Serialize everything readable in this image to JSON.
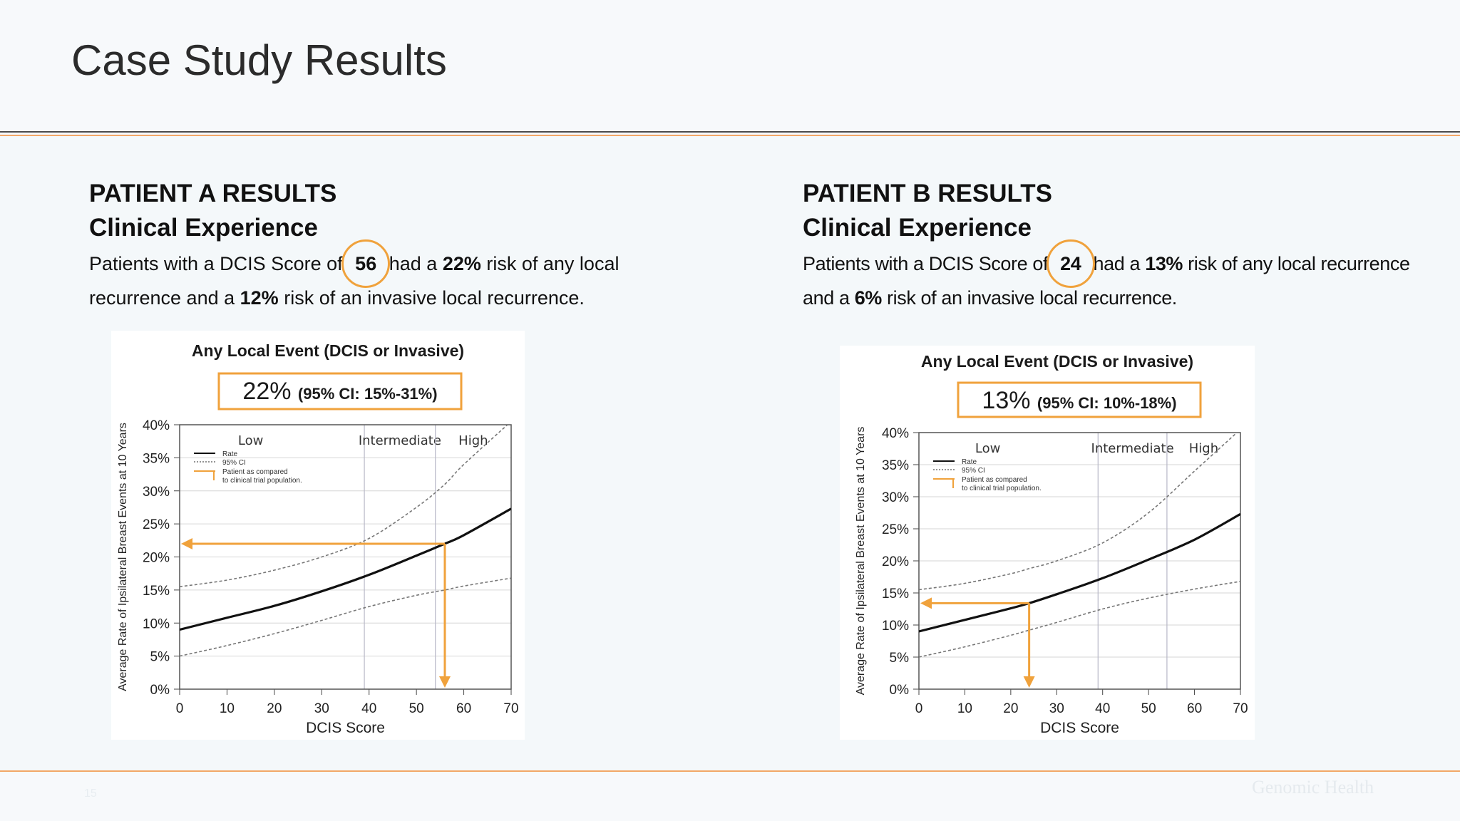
{
  "slide": {
    "title": "Case Study Results",
    "footer_page": "15",
    "footer_logo": "Genomic Health"
  },
  "panels": [
    {
      "heading": "PATIENT A RESULTS",
      "subheading": "Clinical Experience",
      "text_before": "Patients with a DCIS Score of",
      "score": "56",
      "text_mid1": "had a",
      "any_risk": "22%",
      "text_mid2": "risk of any local recurrence and a",
      "invasive_risk": "12%",
      "text_end": "risk of an invasive local recurrence."
    },
    {
      "heading": "PATIENT B RESULTS",
      "subheading": "Clinical Experience",
      "text_before": "Patients with a DCIS Score of",
      "score": "24",
      "text_mid1": "had a",
      "any_risk": "13%",
      "text_mid2": "risk of any local recurrence and a",
      "invasive_risk": "6%",
      "text_end": "risk of an invasive local recurrence."
    }
  ],
  "colors": {
    "accent": "#f0a23c",
    "rate_line": "#111111",
    "ci_line": "#777777",
    "grid": "#d6d6d6"
  },
  "chart_data": [
    {
      "type": "line",
      "title": "Any Local Event (DCIS or Invasive)",
      "headline_value": "22%",
      "headline_ci": "(95% CI: 15%-31%)",
      "xlabel": "DCIS Score",
      "ylabel": "Average Rate of Ipsilateral Breast Events at 10 Years",
      "xlim": [
        0,
        70
      ],
      "ylim": [
        0,
        40
      ],
      "x_ticks": [
        "0",
        "10",
        "20",
        "30",
        "40",
        "50",
        "60",
        "70"
      ],
      "y_ticks": [
        "0%",
        "5%",
        "10%",
        "15%",
        "20%",
        "25%",
        "30%",
        "35%",
        "40%"
      ],
      "risk_groups": [
        {
          "label": "Low",
          "x_start": 0,
          "x_end": 39
        },
        {
          "label": "Intermediate",
          "x_start": 39,
          "x_end": 54
        },
        {
          "label": "High",
          "x_start": 54,
          "x_end": 70
        }
      ],
      "legend": {
        "position": "top-left",
        "items": [
          "Rate",
          "95% CI",
          "Patient as compared",
          "to clinical trial population."
        ]
      },
      "series": [
        {
          "name": "Rate",
          "x": [
            0,
            10,
            20,
            30,
            40,
            50,
            56,
            60,
            70
          ],
          "values": [
            9,
            10.8,
            12.6,
            14.8,
            17.3,
            20.2,
            22,
            23.3,
            27.3
          ]
        },
        {
          "name": "95% CI",
          "x": [
            0,
            10,
            20,
            30,
            40,
            50,
            56,
            60,
            70
          ],
          "values": [
            15.5,
            16.5,
            18,
            20,
            22.8,
            27.5,
            31,
            34,
            40.5
          ]
        },
        {
          "name": "95% CI",
          "x": [
            0,
            10,
            20,
            30,
            40,
            50,
            56,
            60,
            70
          ],
          "values": [
            5,
            6.6,
            8.4,
            10.4,
            12.5,
            14.2,
            15,
            15.6,
            16.8
          ]
        }
      ],
      "patient_marker": {
        "x": 56,
        "y": 22
      }
    },
    {
      "type": "line",
      "title": "Any Local Event (DCIS or Invasive)",
      "headline_value": "13%",
      "headline_ci": "(95% CI: 10%-18%)",
      "xlabel": "DCIS Score",
      "ylabel": "Average Rate of Ipsilateral Breast Events at 10 Years",
      "xlim": [
        0,
        70
      ],
      "ylim": [
        0,
        40
      ],
      "x_ticks": [
        "0",
        "10",
        "20",
        "30",
        "40",
        "50",
        "60",
        "70"
      ],
      "y_ticks": [
        "0%",
        "5%",
        "10%",
        "15%",
        "20%",
        "25%",
        "30%",
        "35%",
        "40%"
      ],
      "risk_groups": [
        {
          "label": "Low",
          "x_start": 0,
          "x_end": 39
        },
        {
          "label": "Intermediate",
          "x_start": 39,
          "x_end": 54
        },
        {
          "label": "High",
          "x_start": 54,
          "x_end": 70
        }
      ],
      "legend": {
        "position": "top-left",
        "items": [
          "Rate",
          "95% CI",
          "Patient as compared",
          "to clinical trial population."
        ]
      },
      "series": [
        {
          "name": "Rate",
          "x": [
            0,
            10,
            20,
            24,
            30,
            40,
            50,
            60,
            70
          ],
          "values": [
            9,
            10.8,
            12.6,
            13.4,
            14.8,
            17.3,
            20.2,
            23.3,
            27.3
          ]
        },
        {
          "name": "95% CI",
          "x": [
            0,
            10,
            20,
            24,
            30,
            40,
            50,
            60,
            70
          ],
          "values": [
            15.5,
            16.5,
            18,
            18.8,
            20,
            22.8,
            27.5,
            34,
            40.5
          ]
        },
        {
          "name": "95% CI",
          "x": [
            0,
            10,
            20,
            24,
            30,
            40,
            50,
            60,
            70
          ],
          "values": [
            5,
            6.6,
            8.4,
            9.2,
            10.4,
            12.5,
            14.2,
            15.6,
            16.8
          ]
        }
      ],
      "patient_marker": {
        "x": 24,
        "y": 13.4
      }
    }
  ]
}
